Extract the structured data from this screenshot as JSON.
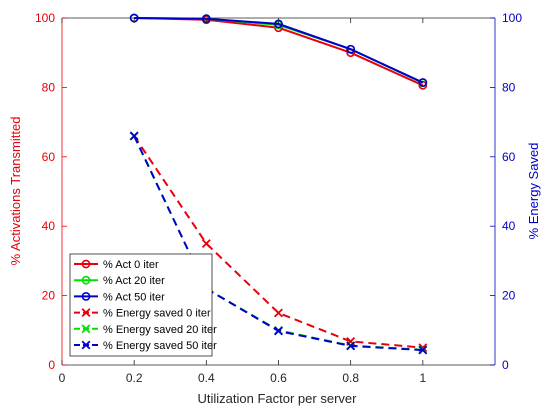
{
  "chart_data": {
    "type": "line",
    "xlabel": "Utilization Factor per server",
    "ylabel_left": "% Activations Transmitted",
    "ylabel_right": "% Energy Saved",
    "xlim": [
      0,
      1.2
    ],
    "xticks": [
      0,
      0.2,
      0.4,
      0.6,
      0.8,
      1
    ],
    "ylim_left": [
      0,
      100
    ],
    "ylim_right": [
      0,
      100
    ],
    "yticks_left": [
      0,
      20,
      40,
      60,
      80,
      100
    ],
    "yticks_right": [
      0,
      20,
      40,
      60,
      80,
      100
    ],
    "grid": false,
    "legend_position": "lower-left",
    "left_axis_color": "#e8000b",
    "right_axis_color": "#0000cc",
    "series": [
      {
        "name": "% Act 0 iter",
        "axis": "left",
        "color": "#e8000b",
        "marker": "o",
        "dash": "solid",
        "x": [
          0.2,
          0.4,
          0.6,
          0.8,
          1.0
        ],
        "values": [
          100,
          99.5,
          97.2,
          90,
          80.6
        ]
      },
      {
        "name": "% Act 20 iter",
        "axis": "left",
        "color": "#00e000",
        "marker": "o",
        "dash": "solid",
        "x": [
          0.2,
          0.4,
          0.6,
          0.8,
          1.0
        ],
        "values": [
          100,
          99.8,
          98,
          91,
          81.3
        ]
      },
      {
        "name": "% Act 50 iter",
        "axis": "left",
        "color": "#0000cc",
        "marker": "o",
        "dash": "solid",
        "x": [
          0.2,
          0.4,
          0.6,
          0.8,
          1.0
        ],
        "values": [
          100,
          99.8,
          98.3,
          91,
          81.4
        ]
      },
      {
        "name": "% Energy saved 0 iter",
        "axis": "right",
        "color": "#e8000b",
        "marker": "x",
        "dash": "dashed",
        "x": [
          0.2,
          0.4,
          0.6,
          0.8,
          1.0
        ],
        "values": [
          66,
          35,
          15,
          6.8,
          5
        ]
      },
      {
        "name": "% Energy saved 20 iter",
        "axis": "right",
        "color": "#00e000",
        "marker": "x",
        "dash": "dashed",
        "x": [
          0.2,
          0.4,
          0.6,
          0.8,
          1.0
        ],
        "values": [
          66,
          22,
          10,
          5.6,
          4.4
        ]
      },
      {
        "name": "% Energy saved 50 iter",
        "axis": "right",
        "color": "#0000cc",
        "marker": "x",
        "dash": "dashed",
        "x": [
          0.2,
          0.4,
          0.6,
          0.8,
          1.0
        ],
        "values": [
          66,
          22,
          9.8,
          5.5,
          4.3
        ]
      }
    ]
  }
}
